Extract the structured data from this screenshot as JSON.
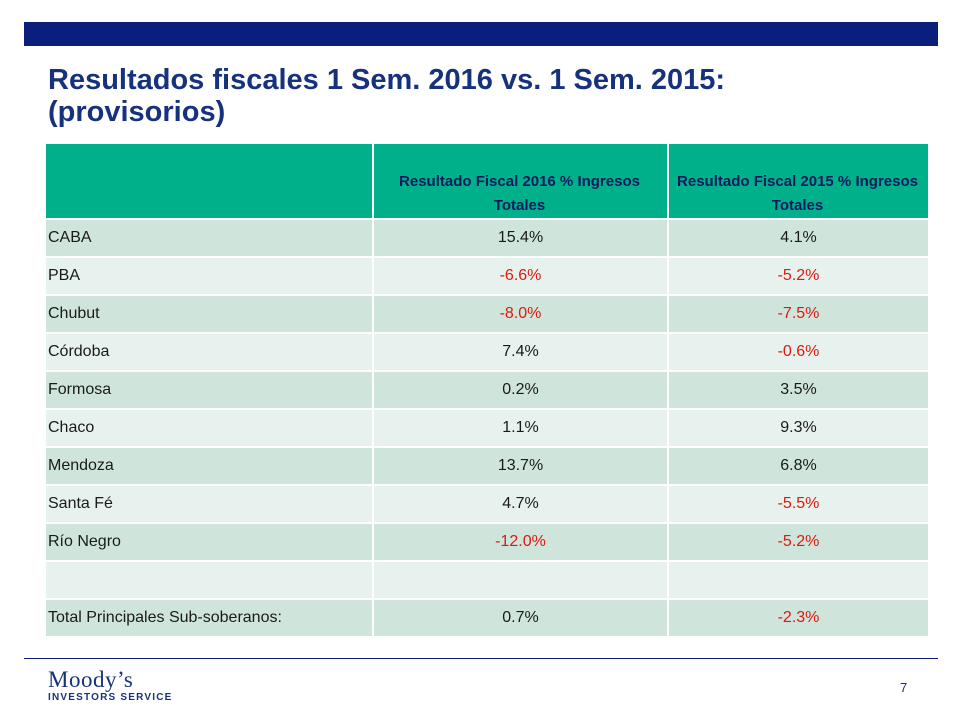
{
  "title": "Resultados fiscales 1 Sem. 2016 vs. 1 Sem. 2015: (provisorios)",
  "table": {
    "headers": [
      "",
      "Resultado Fiscal 2016 % Ingresos Totales",
      "Resultado Fiscal 2015 % Ingresos Totales"
    ],
    "rows": [
      {
        "name": "CABA",
        "v2016": "15.4%",
        "v2015": "4.1%"
      },
      {
        "name": "PBA",
        "v2016": "-6.6%",
        "v2015": "-5.2%"
      },
      {
        "name": "Chubut",
        "v2016": "-8.0%",
        "v2015": "-7.5%"
      },
      {
        "name": "Córdoba",
        "v2016": "7.4%",
        "v2015": "-0.6%"
      },
      {
        "name": "Formosa",
        "v2016": "0.2%",
        "v2015": "3.5%"
      },
      {
        "name": "Chaco",
        "v2016": "1.1%",
        "v2015": "9.3%"
      },
      {
        "name": "Mendoza",
        "v2016": "13.7%",
        "v2015": "6.8%"
      },
      {
        "name": "Santa Fé",
        "v2016": "4.7%",
        "v2015": "-5.5%"
      },
      {
        "name": "Río Negro",
        "v2016": "-12.0%",
        "v2015": "-5.2%"
      },
      {
        "name": "",
        "v2016": "",
        "v2015": ""
      },
      {
        "name": "Total Principales Sub-soberanos:",
        "v2016": "0.7%",
        "v2015": "-2.3%"
      }
    ]
  },
  "logo": {
    "name": "Moody’s",
    "subtitle": "INVESTORS SERVICE"
  },
  "page_number": "7",
  "colors": {
    "navy": "#0a1e7c",
    "header_green": "#00b08a",
    "row_dark": "#cfe5dc",
    "row_light": "#e7f2ee",
    "negative_red": "#e0180c"
  }
}
